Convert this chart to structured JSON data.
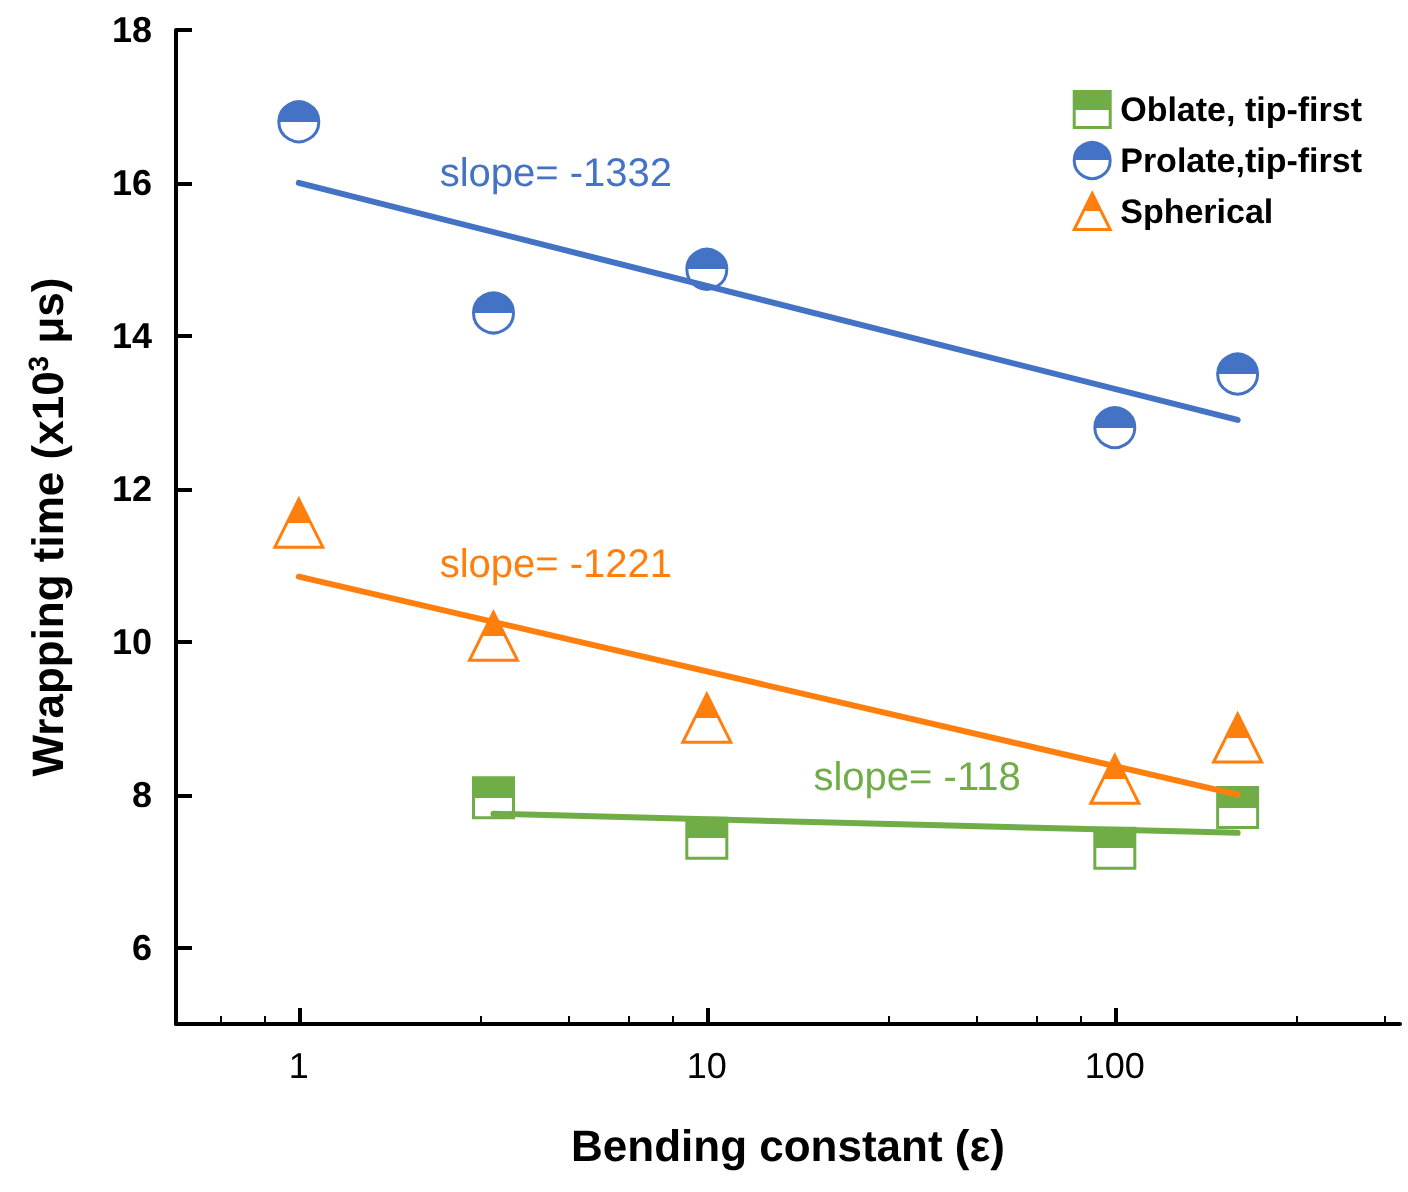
{
  "chart_data": {
    "type": "scatter",
    "xlabel": "Bending constant (ε)",
    "ylabel": "Wrapping time (x10$^{3}$ μs)",
    "log": "x",
    "xlim": [
      0.5,
      500
    ],
    "xticks": [
      1,
      10,
      100
    ],
    "ylim": [
      5,
      18
    ],
    "yticks": [
      6,
      8,
      10,
      12,
      14,
      16,
      18
    ],
    "grid": false,
    "legend": "top right",
    "series": [
      {
        "name": "Oblate, tip-first",
        "color": "#70ad47",
        "marker": "square",
        "x": [
          3,
          10,
          100,
          200
        ],
        "values": [
          7.96,
          7.43,
          7.3,
          7.83
        ]
      },
      {
        "name": "Prolate,tip-first",
        "color": "#4472c4",
        "marker": "circle",
        "x": [
          1,
          3,
          10,
          100,
          200
        ],
        "values": [
          16.8,
          14.3,
          14.87,
          12.8,
          13.5
        ]
      },
      {
        "name": "Spherical",
        "color": "#ff7f0e",
        "marker": "triangle",
        "x": [
          1,
          3,
          10,
          100,
          200
        ],
        "values": [
          11.55,
          10.07,
          9.0,
          8.2,
          8.74
        ]
      },
      {
        "type": "line",
        "color": "#4472c4",
        "x": [
          1,
          200
        ],
        "values": [
          16.0,
          12.9
        ]
      },
      {
        "type": "line",
        "color": "#ff7f0e",
        "x": [
          1,
          200
        ],
        "values": [
          10.85,
          8.0
        ]
      },
      {
        "type": "line",
        "color": "#70ad47",
        "x": [
          3,
          200
        ],
        "values": [
          7.75,
          7.5
        ]
      }
    ],
    "annotations": [
      "slope= -1332",
      "slope= -1221",
      "slope= -118"
    ]
  }
}
